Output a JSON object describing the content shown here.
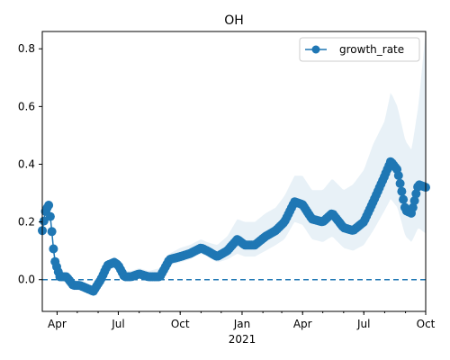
{
  "chart_data": {
    "type": "line",
    "title": "OH",
    "xlabel": "",
    "ylabel": "",
    "x_range": [
      "2020-03-10",
      "2021-10-01"
    ],
    "ylim": [
      -0.11,
      0.86
    ],
    "y_ticks": [
      0.0,
      0.2,
      0.4,
      0.6,
      0.8
    ],
    "y_tick_labels": [
      "0.0",
      "0.2",
      "0.4",
      "0.6",
      "0.8"
    ],
    "x_ticks": [
      {
        "date": "2020-04-01",
        "label": "Apr"
      },
      {
        "date": "2020-07-01",
        "label": "Jul"
      },
      {
        "date": "2020-10-01",
        "label": "Oct"
      },
      {
        "date": "2021-01-01",
        "label": "Jan"
      },
      {
        "date": "2021-04-01",
        "label": "Apr"
      },
      {
        "date": "2021-07-01",
        "label": "Jul"
      },
      {
        "date": "2021-10-01",
        "label": "Oct"
      }
    ],
    "x_year_label": {
      "date": "2021-01-01",
      "label": "2021"
    },
    "grid": false,
    "legend": {
      "position": "top-right"
    },
    "reference_line": {
      "y": 0.0,
      "style": "dashed"
    },
    "series": [
      {
        "name": "growth_rate",
        "color": "#1f77b4",
        "band_color": "#1f77b4",
        "x": [
          "2020-03-10",
          "2020-03-15",
          "2020-03-20",
          "2020-03-25",
          "2020-03-28",
          "2020-04-05",
          "2020-04-15",
          "2020-04-25",
          "2020-05-05",
          "2020-05-15",
          "2020-05-25",
          "2020-06-05",
          "2020-06-15",
          "2020-06-25",
          "2020-07-01",
          "2020-07-10",
          "2020-07-20",
          "2020-08-01",
          "2020-08-15",
          "2020-09-01",
          "2020-09-15",
          "2020-10-01",
          "2020-10-15",
          "2020-11-01",
          "2020-11-10",
          "2020-11-25",
          "2020-12-10",
          "2020-12-25",
          "2021-01-05",
          "2021-01-20",
          "2021-02-05",
          "2021-02-20",
          "2021-03-05",
          "2021-03-20",
          "2021-04-01",
          "2021-04-15",
          "2021-05-01",
          "2021-05-15",
          "2021-06-01",
          "2021-06-15",
          "2021-07-01",
          "2021-07-15",
          "2021-08-01",
          "2021-08-10",
          "2021-08-20",
          "2021-09-01",
          "2021-09-10",
          "2021-09-20",
          "2021-10-01"
        ],
        "y": [
          0.17,
          0.24,
          0.26,
          0.15,
          0.07,
          0.01,
          0.01,
          -0.02,
          -0.02,
          -0.03,
          -0.04,
          0.0,
          0.05,
          0.06,
          0.05,
          0.01,
          0.01,
          0.02,
          0.01,
          0.01,
          0.07,
          0.08,
          0.09,
          0.11,
          0.1,
          0.08,
          0.1,
          0.14,
          0.12,
          0.12,
          0.15,
          0.17,
          0.2,
          0.27,
          0.26,
          0.21,
          0.2,
          0.23,
          0.18,
          0.17,
          0.2,
          0.27,
          0.36,
          0.41,
          0.38,
          0.24,
          0.23,
          0.33,
          0.32
        ],
        "lower": [
          0.16,
          0.22,
          0.24,
          0.13,
          0.05,
          0.0,
          0.0,
          -0.03,
          -0.03,
          -0.04,
          -0.05,
          -0.01,
          0.04,
          0.05,
          0.04,
          0.0,
          0.0,
          0.01,
          0.0,
          0.0,
          0.05,
          0.06,
          0.07,
          0.09,
          0.08,
          0.06,
          0.07,
          0.09,
          0.08,
          0.08,
          0.1,
          0.12,
          0.14,
          0.2,
          0.19,
          0.14,
          0.13,
          0.15,
          0.11,
          0.1,
          0.12,
          0.17,
          0.24,
          0.28,
          0.25,
          0.15,
          0.13,
          0.18,
          0.16
        ],
        "upper": [
          0.18,
          0.26,
          0.28,
          0.17,
          0.09,
          0.03,
          0.02,
          -0.01,
          0.0,
          -0.02,
          -0.03,
          0.02,
          0.06,
          0.08,
          0.07,
          0.03,
          0.03,
          0.04,
          0.03,
          0.04,
          0.09,
          0.11,
          0.12,
          0.14,
          0.13,
          0.12,
          0.15,
          0.21,
          0.2,
          0.2,
          0.23,
          0.25,
          0.29,
          0.36,
          0.36,
          0.31,
          0.31,
          0.35,
          0.31,
          0.33,
          0.38,
          0.47,
          0.55,
          0.65,
          0.6,
          0.48,
          0.45,
          0.6,
          0.86
        ]
      }
    ]
  }
}
